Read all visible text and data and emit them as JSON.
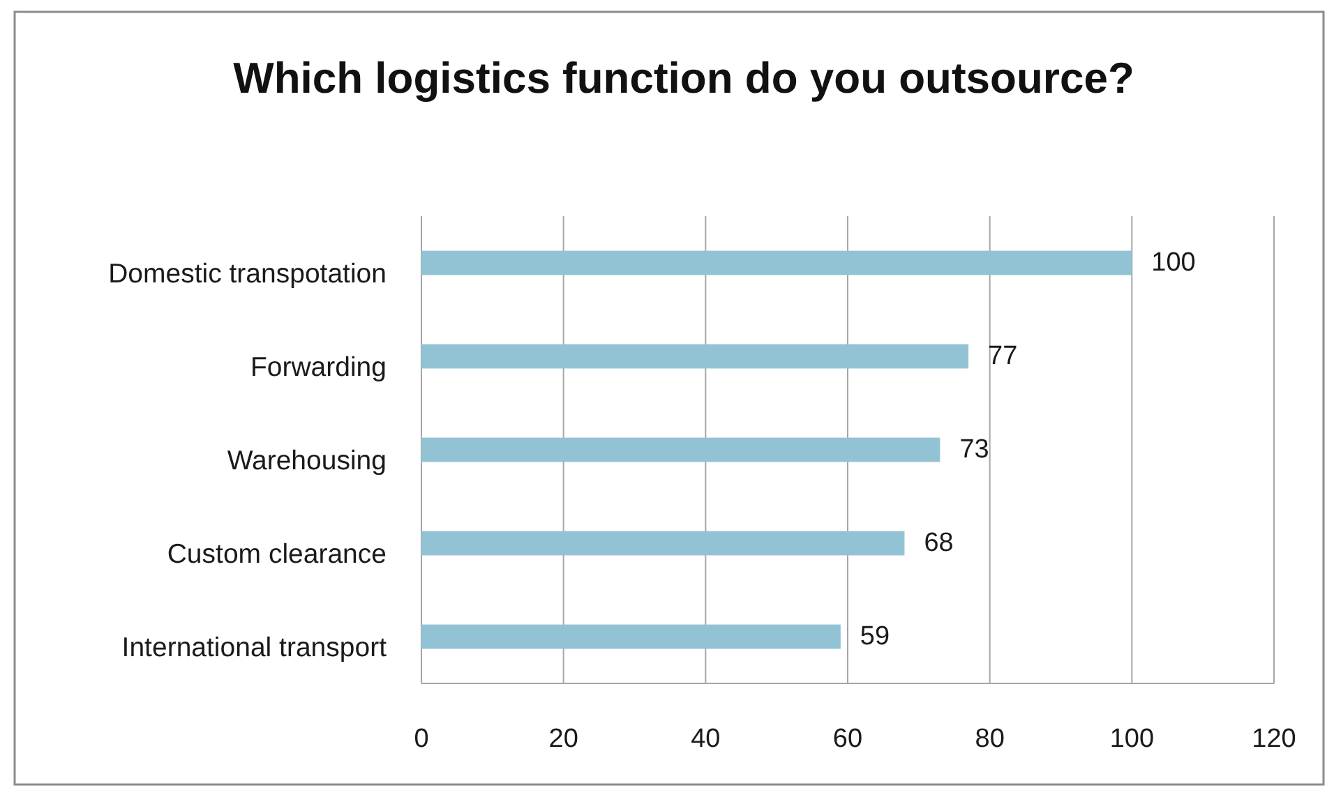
{
  "chart_data": {
    "type": "bar",
    "orientation": "horizontal",
    "title": "Which logistics function do you outsource?",
    "categories": [
      "Domestic transpotation",
      "Forwarding",
      "Warehousing",
      "Custom clearance",
      "International transport"
    ],
    "values": [
      100,
      77,
      73,
      68,
      59
    ],
    "color": "#92c3d5",
    "xlim": [
      0,
      120
    ],
    "xticks": [
      0,
      20,
      40,
      60,
      80,
      100,
      120
    ],
    "grid": "x",
    "data_labels": true
  }
}
